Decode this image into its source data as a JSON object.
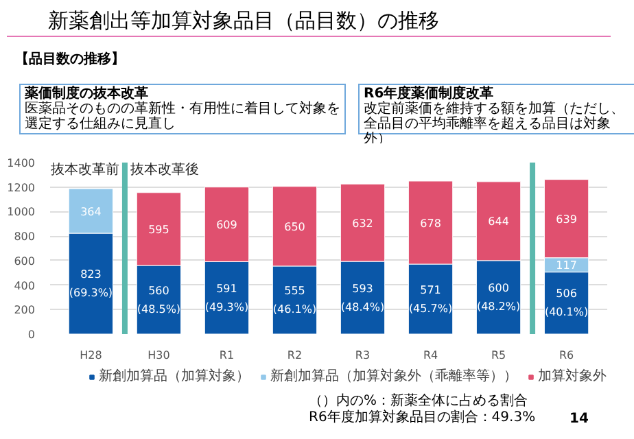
{
  "chart_data": {
    "type": "bar",
    "title": "新薬創出等加算対象品目（品目数）の推移",
    "subtitle": "【品目数の推移】",
    "categories": [
      "H28",
      "H30",
      "R1",
      "R2",
      "R3",
      "R4",
      "R5",
      "R6"
    ],
    "stacked": true,
    "series": [
      {
        "name": "新創加算品（加算対象）",
        "color": "#0a57a8",
        "values": [
          823,
          560,
          591,
          555,
          593,
          571,
          600,
          506
        ],
        "value_labels": [
          "823\n(69.3%)",
          "560\n(48.5%)",
          "591\n(49.3%)",
          "555\n(46.1%)",
          "593\n(48.4%)",
          "571\n(45.7%)",
          "600\n(48.2%)",
          "506\n(40.1%)"
        ]
      },
      {
        "name": "新創加算品（加算対象外（乖離率等））",
        "color": "#93c8ea",
        "values": [
          364,
          null,
          null,
          null,
          null,
          null,
          null,
          117
        ],
        "value_labels": [
          "364",
          null,
          null,
          null,
          null,
          null,
          null,
          "117"
        ]
      },
      {
        "name": "加算対象外",
        "color": "#e0506f",
        "values": [
          null,
          595,
          609,
          650,
          632,
          678,
          644,
          639
        ],
        "value_labels": [
          null,
          "595",
          "609",
          "650",
          "632",
          "678",
          "644",
          "639"
        ]
      }
    ],
    "ylim": [
      0,
      1400
    ],
    "yticks": [
      0,
      200,
      400,
      600,
      800,
      1000,
      1200,
      1400
    ],
    "grid": "y",
    "legend": "bottom",
    "annotations": [
      "抜本改革前",
      "抜本改革後",
      "薬価制度の抜本改革",
      "医薬品そのものの革新性・有用性に着目して対象を選定する仕組みに見直し",
      "R6年度薬価制度改革",
      "改定前薬価を維持する額を加算（ただし、全品目の平均乖離率を超える品目は対象外）",
      "（）内の%：新薬全体に占める割合",
      "R6年度加算対象品目の割合：49.3%",
      "14"
    ]
  }
}
